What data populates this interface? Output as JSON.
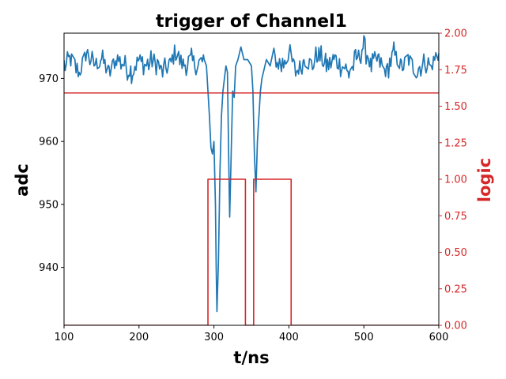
{
  "chart_data": {
    "type": "line",
    "title": "trigger of Channel1",
    "xlabel": "t/ns",
    "ylabel_left": "adc",
    "ylabel_right": "logic",
    "xlim": [
      100,
      600
    ],
    "ylim_left": [
      930.8,
      977.2
    ],
    "ylim_right": [
      0.0,
      2.0
    ],
    "x_ticks": [
      "100",
      "200",
      "300",
      "400",
      "500",
      "600"
    ],
    "y_left_ticks": [
      "940",
      "950",
      "960",
      "970"
    ],
    "y_right_ticks": [
      "0.00",
      "0.25",
      "0.50",
      "0.75",
      "1.00",
      "1.25",
      "1.50",
      "1.75",
      "2.00"
    ],
    "colors": {
      "adc": "#1f77b4",
      "logic": "#d62728",
      "threshold": "#d62728"
    },
    "series": [
      {
        "name": "adc",
        "axis": "left",
        "baseline_points": [
          [
            100,
            972
          ],
          [
            110,
            973
          ],
          [
            120,
            971
          ],
          [
            130,
            974
          ],
          [
            140,
            972
          ],
          [
            150,
            973
          ],
          [
            160,
            971
          ],
          [
            170,
            973
          ],
          [
            180,
            972
          ],
          [
            190,
            971
          ],
          [
            200,
            973
          ],
          [
            210,
            972
          ],
          [
            220,
            973
          ],
          [
            230,
            971
          ],
          [
            240,
            972
          ],
          [
            250,
            974
          ],
          [
            260,
            972
          ],
          [
            270,
            973
          ],
          [
            280,
            972
          ],
          [
            287,
            973
          ]
        ],
        "pulse_points": [
          [
            290,
            972
          ],
          [
            292,
            968
          ],
          [
            294,
            964
          ],
          [
            296,
            959
          ],
          [
            298,
            958
          ],
          [
            300,
            960
          ],
          [
            302,
            950
          ],
          [
            303,
            940
          ],
          [
            304,
            933
          ],
          [
            306,
            941
          ],
          [
            308,
            955
          ],
          [
            310,
            964
          ],
          [
            312,
            968
          ],
          [
            314,
            970
          ],
          [
            316,
            972
          ],
          [
            318,
            971
          ],
          [
            320,
            955
          ],
          [
            321,
            948
          ],
          [
            323,
            958
          ],
          [
            325,
            968
          ],
          [
            327,
            967
          ],
          [
            329,
            972
          ],
          [
            332,
            973
          ],
          [
            336,
            975
          ],
          [
            340,
            973
          ],
          [
            345,
            973
          ],
          [
            350,
            972
          ],
          [
            352,
            968
          ],
          [
            354,
            958
          ],
          [
            356,
            952
          ],
          [
            358,
            960
          ],
          [
            360,
            964
          ],
          [
            362,
            968
          ],
          [
            364,
            970
          ],
          [
            366,
            971
          ],
          [
            370,
            973
          ],
          [
            375,
            972
          ]
        ],
        "tail_points": [
          [
            380,
            973
          ],
          [
            390,
            972
          ],
          [
            400,
            974
          ],
          [
            410,
            971
          ],
          [
            420,
            973
          ],
          [
            430,
            972
          ],
          [
            440,
            974
          ],
          [
            450,
            972
          ],
          [
            460,
            973
          ],
          [
            470,
            972
          ],
          [
            480,
            971
          ],
          [
            490,
            973
          ],
          [
            500,
            975
          ],
          [
            510,
            972
          ],
          [
            520,
            973
          ],
          [
            530,
            971
          ],
          [
            540,
            974
          ],
          [
            550,
            972
          ],
          [
            560,
            973
          ],
          [
            570,
            971
          ],
          [
            580,
            973
          ],
          [
            590,
            972
          ],
          [
            600,
            974
          ]
        ]
      },
      {
        "name": "logic",
        "axis": "right",
        "points": [
          [
            100,
            0.0
          ],
          [
            292,
            0.0
          ],
          [
            292,
            1.0
          ],
          [
            342,
            1.0
          ],
          [
            342,
            0.0
          ],
          [
            353,
            0.0
          ],
          [
            353,
            1.0
          ],
          [
            403,
            1.0
          ],
          [
            403,
            0.0
          ],
          [
            600,
            0.0
          ]
        ]
      },
      {
        "name": "threshold",
        "axis": "left",
        "points": [
          [
            100,
            967.7
          ],
          [
            600,
            967.7
          ]
        ]
      }
    ]
  }
}
